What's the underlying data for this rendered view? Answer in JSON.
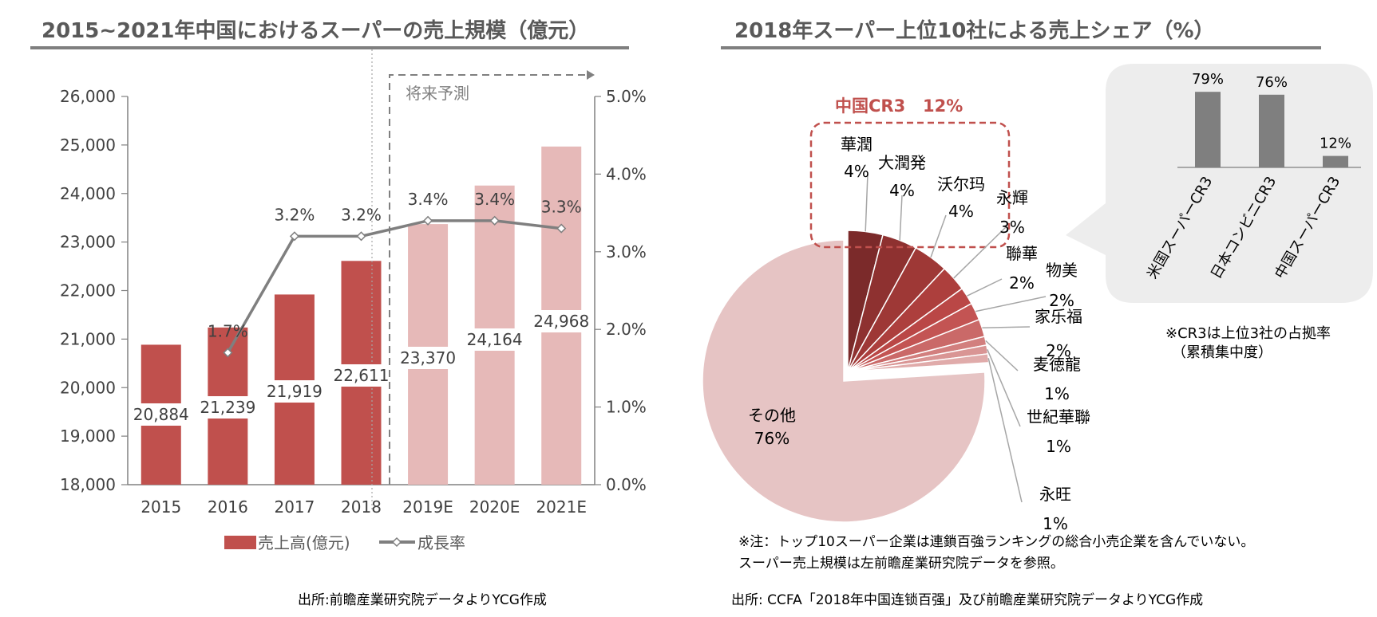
{
  "left_panel": {
    "title": "2015~2021年中国におけるスーパーの売上規模（億元）",
    "forecast_label": "将来予測",
    "source": "出所:前瞻産業研究院データよりYCG作成"
  },
  "right_panel": {
    "title": "2018年スーパー上位10社による売上シェア（%）",
    "cr3_label": "中国CR3",
    "cr3_value": "12%",
    "inset_note_line1": "※CR3は上位3社の占拠率",
    "inset_note_line2": "（累積集中度）",
    "note_line1": "※注：トップ10スーパー企業は連鎖百強ランキングの総合小売企業を含んでいない。",
    "note_line2": "スーパー売上規模は左前瞻産業研究院データを参照。",
    "source": "出所: CCFA「2018年中国连锁百强」及び前瞻産業研究院データよりYCG作成"
  },
  "colors": {
    "bar_actual": "#c0504d",
    "bar_forecast": "#e6b9b8",
    "growth_line": "#7f7f7f",
    "cr3_highlight": "#c0504d",
    "inset_bar": "#7f7f7f",
    "inset_bg": "#ededed"
  },
  "chart_data": [
    {
      "type": "bar",
      "categories": [
        "2015",
        "2016",
        "2017",
        "2018",
        "2019E",
        "2020E",
        "2021E"
      ],
      "series": [
        {
          "name": "売上高(億元)",
          "axis": "left",
          "values": [
            20884,
            21239,
            21919,
            22611,
            23370,
            24164,
            24968
          ],
          "labels": [
            "20,884",
            "21,239",
            "21,919",
            "22,611",
            "23,370",
            "24,164",
            "24,968"
          ]
        },
        {
          "name": "成長率",
          "type": "line",
          "axis": "right",
          "values": [
            null,
            1.7,
            3.2,
            3.2,
            3.4,
            3.4,
            3.3
          ],
          "labels": [
            "",
            "1.7%",
            "3.2%",
            "3.2%",
            "3.4%",
            "3.4%",
            "3.3%"
          ]
        }
      ],
      "forecast_categories": [
        "2019E",
        "2020E",
        "2021E"
      ],
      "ylim": [
        18000,
        26000
      ],
      "yticks": [
        "18,000",
        "19,000",
        "20,000",
        "21,000",
        "22,000",
        "23,000",
        "24,000",
        "25,000",
        "26,000"
      ],
      "y2lim": [
        0,
        5
      ],
      "y2ticks": [
        "0.0%",
        "1.0%",
        "2.0%",
        "3.0%",
        "4.0%",
        "5.0%"
      ],
      "legend": {
        "placement": "bottom",
        "bar_label": "売上高(億元)",
        "line_label": "成長率"
      }
    },
    {
      "type": "pie",
      "slices": [
        {
          "label": "華潤",
          "value": 4,
          "text": "4%",
          "color": "#7b2a2a"
        },
        {
          "label": "大潤発",
          "value": 4,
          "text": "4%",
          "color": "#8e3130"
        },
        {
          "label": "沃尔玛",
          "value": 4,
          "text": "4%",
          "color": "#9e3836"
        },
        {
          "label": "永輝",
          "value": 3,
          "text": "3%",
          "color": "#ad3f3d"
        },
        {
          "label": "聯華",
          "value": 2,
          "text": "2%",
          "color": "#ba4746"
        },
        {
          "label": "物美",
          "value": 2,
          "text": "2%",
          "color": "#c35453"
        },
        {
          "label": "家乐福",
          "value": 2,
          "text": "2%",
          "color": "#ca6968"
        },
        {
          "label": "麦徳龍",
          "value": 1,
          "text": "1%",
          "color": "#d27f7e"
        },
        {
          "label": "世紀華聯",
          "value": 1,
          "text": "1%",
          "color": "#d99594"
        },
        {
          "label": "永旺",
          "value": 1,
          "text": "1%",
          "color": "#e0abaa"
        },
        {
          "label": "その他",
          "value": 76,
          "text": "76%",
          "color": "#e6c4c4"
        }
      ]
    },
    {
      "type": "bar",
      "categories": [
        "米国スーパーCR3",
        "日本コンビニCR3",
        "中国スーパーCR3"
      ],
      "values": [
        79,
        76,
        12
      ],
      "labels": [
        "79%",
        "76%",
        "12%"
      ]
    }
  ]
}
